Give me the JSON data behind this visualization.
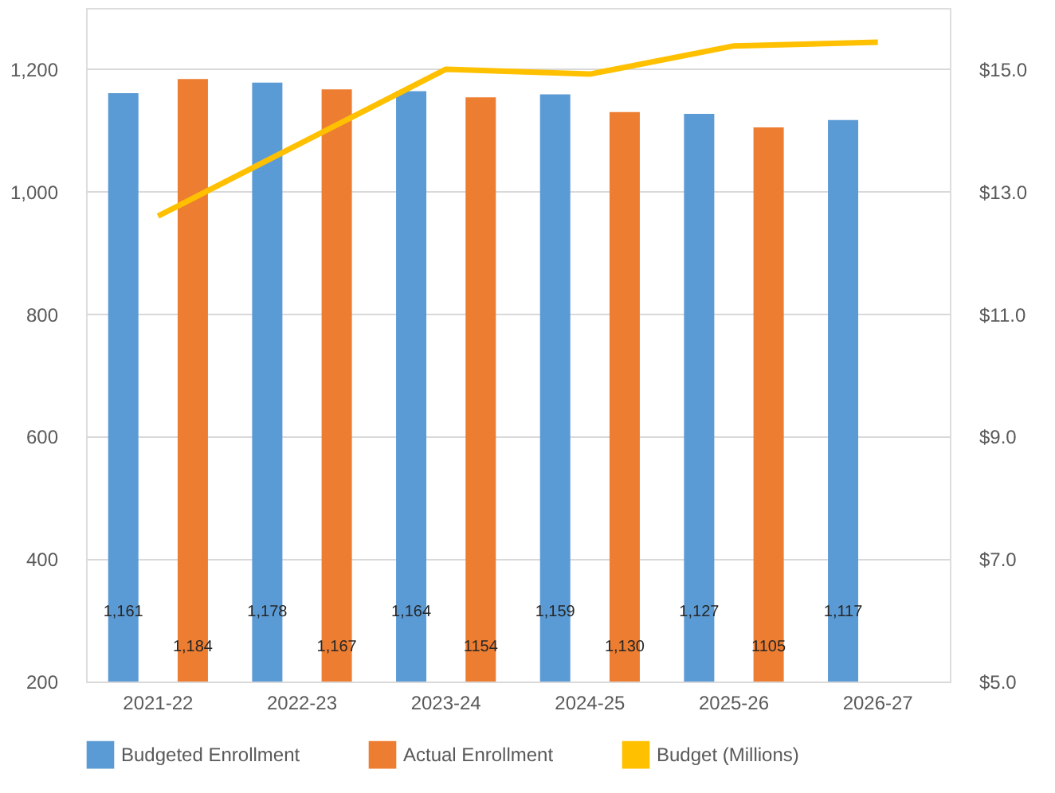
{
  "chart_data": {
    "type": "bar",
    "categories": [
      "2021-22",
      "2022-23",
      "2023-24",
      "2024-25",
      "2025-26",
      "2026-27"
    ],
    "series": [
      {
        "name": "Budgeted Enrollment",
        "color": "#5b9bd5",
        "values": [
          1161,
          1178,
          1164,
          1159,
          1127,
          1117
        ],
        "value_labels": [
          "1,161",
          "1,178",
          "1,164",
          "1,159",
          "1,127",
          "1,117"
        ]
      },
      {
        "name": "Actual Enrollment",
        "color": "#ed7d31",
        "values": [
          1184,
          1167,
          1154,
          1130,
          1105,
          null
        ],
        "value_labels": [
          "1,184",
          "1,167",
          "1154",
          "1,130",
          "1105",
          null
        ]
      },
      {
        "name": "Budget (Millions)",
        "color": "#ffc000",
        "type": "line",
        "axis": "y2",
        "values": [
          12.6,
          13.8,
          15.0,
          14.92,
          15.38,
          15.44
        ]
      }
    ],
    "ylim": [
      200,
      1300
    ],
    "yticks": [
      200,
      400,
      600,
      800,
      {
        "value": 1000,
        "label": "1,000"
      },
      {
        "value": 1200,
        "label": "1,200"
      }
    ],
    "y2lim": [
      5,
      16
    ],
    "y2ticks": [
      {
        "value": 5,
        "label": "$5.0"
      },
      {
        "value": 7,
        "label": "$7.0"
      },
      {
        "value": 9,
        "label": "$9.0"
      },
      {
        "value": 11,
        "label": "$11.0"
      },
      {
        "value": 13,
        "label": "$13.0"
      },
      {
        "value": 15,
        "label": "$15.0"
      }
    ],
    "grid": "y",
    "legend": "bottom"
  }
}
